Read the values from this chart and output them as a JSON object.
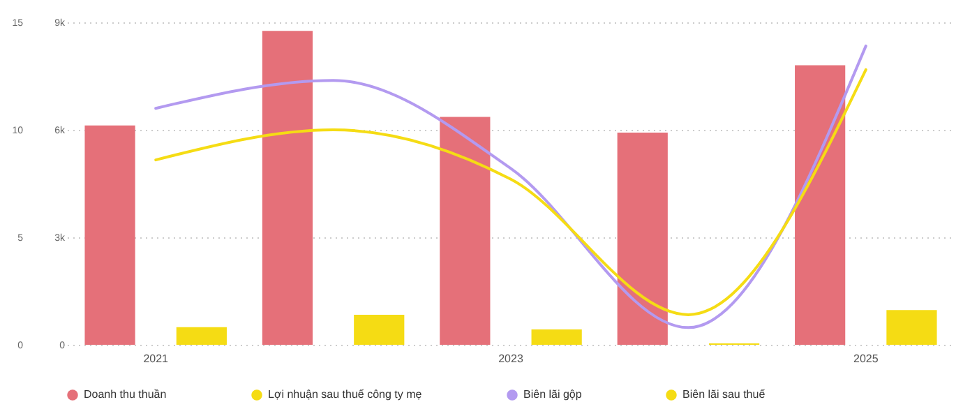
{
  "chart_data": {
    "type": "bar",
    "categories": [
      "2021",
      null,
      "2023",
      null,
      "2025"
    ],
    "series": [
      {
        "name": "Doanh thu thuần",
        "color": "#e57079",
        "values": [
          6120,
          8760,
          6360,
          5920,
          7800
        ]
      },
      {
        "name": "Lợi nhuận sau thuế công ty mẹ",
        "color": "#f5dc14",
        "values": [
          490,
          840,
          430,
          40,
          970
        ]
      },
      {
        "name": "Biên lãi gộp",
        "color": "#b39af0",
        "type": "line",
        "axis": "y2",
        "values": [
          11.0,
          12.3,
          8.2,
          0.8,
          13.9
        ]
      },
      {
        "name": "Biên lãi sau thuế",
        "color": "#f5dc14",
        "type": "line",
        "axis": "y2",
        "values": [
          8.6,
          10.0,
          7.7,
          1.4,
          12.8
        ]
      }
    ],
    "ylim": [
      0,
      9000
    ],
    "yticks": [
      0,
      {
        "value": 3000,
        "label": "3k"
      },
      {
        "value": 6000,
        "label": "6k"
      },
      {
        "value": 9000,
        "label": "9k"
      }
    ],
    "y2lim": [
      0,
      15
    ],
    "y2ticks": [
      0,
      5,
      10,
      15
    ],
    "grid": "y",
    "legend": "bottom"
  }
}
